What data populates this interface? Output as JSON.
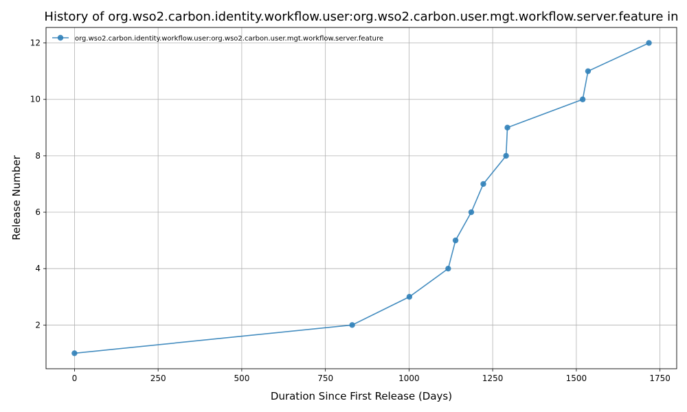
{
  "chart_data": {
    "type": "line",
    "title": "History of org.wso2.carbon.identity.workflow.user:org.wso2.carbon.user.mgt.workflow.server.feature in",
    "xlabel": "Duration Since First Release (Days)",
    "ylabel": "Release Number",
    "xlim": [
      -85,
      1800
    ],
    "ylim": [
      0.45,
      12.55
    ],
    "xticks": [
      0,
      250,
      500,
      750,
      1000,
      1250,
      1500,
      1750
    ],
    "yticks": [
      2,
      4,
      6,
      8,
      10,
      12
    ],
    "grid": true,
    "legend_position": "upper-left",
    "series": [
      {
        "name": "org.wso2.carbon.identity.workflow.user:org.wso2.carbon.user.mgt.workflow.server.feature",
        "color": "#2f7fb8",
        "x": [
          0,
          830,
          1001,
          1117,
          1139,
          1186,
          1222,
          1290,
          1294,
          1519,
          1535,
          1717
        ],
        "y": [
          1,
          2,
          3,
          4,
          5,
          6,
          7,
          8,
          9,
          10,
          11,
          12
        ]
      }
    ]
  }
}
